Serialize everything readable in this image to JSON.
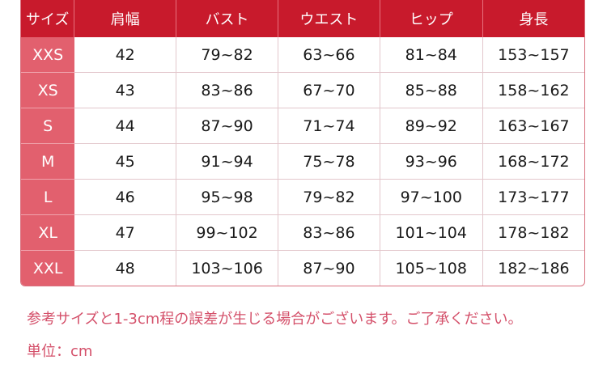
{
  "colors": {
    "header": "#c81a2c",
    "side": "#e2606e",
    "note": "#d4506a"
  },
  "headers": [
    "サイズ",
    "肩幅",
    "バスト",
    "ウエスト",
    "ヒップ",
    "身長"
  ],
  "rows": [
    [
      "XXS",
      "42",
      "79~82",
      "63~66",
      "81~84",
      "153~157"
    ],
    [
      "XS",
      "43",
      "83~86",
      "67~70",
      "85~88",
      "158~162"
    ],
    [
      "S",
      "44",
      "87~90",
      "71~74",
      "89~92",
      "163~167"
    ],
    [
      "M",
      "45",
      "91~94",
      "75~78",
      "93~96",
      "168~172"
    ],
    [
      "L",
      "46",
      "95~98",
      "79~82",
      "97~100",
      "173~177"
    ],
    [
      "XL",
      "47",
      "99~102",
      "83~86",
      "101~104",
      "178~182"
    ],
    [
      "XXL",
      "48",
      "103~106",
      "87~90",
      "105~108",
      "182~186"
    ]
  ],
  "notes": {
    "disclaimer": "参考サイズと1-3cm程の誤差が生じる場合がございます。ご了承ください。",
    "unit": "単位：cm"
  }
}
